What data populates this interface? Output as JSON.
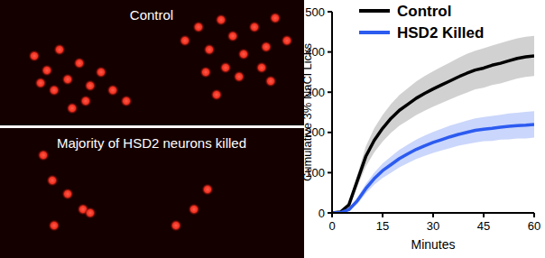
{
  "images": [
    {
      "label": "Control"
    },
    {
      "label": "Majority of HSD2 neurons killed"
    }
  ],
  "chart_data": {
    "type": "line",
    "x_label": "Minutes",
    "y_label": "Cumulative 3% NaCl Licks",
    "x": [
      0,
      2.5,
      5,
      7.5,
      10,
      12.5,
      15,
      17.5,
      20,
      22.5,
      25,
      27.5,
      30,
      32.5,
      35,
      37.5,
      40,
      42.5,
      45,
      47.5,
      50,
      52.5,
      55,
      57.5,
      60
    ],
    "series": [
      {
        "name": "Control",
        "color": "#000000",
        "values": [
          0,
          2,
          20,
          80,
          140,
          180,
          210,
          235,
          255,
          270,
          285,
          297,
          308,
          318,
          328,
          338,
          347,
          355,
          360,
          367,
          372,
          378,
          384,
          388,
          390
        ],
        "error": [
          0,
          1,
          5,
          15,
          25,
          30,
          33,
          36,
          38,
          40,
          42,
          43,
          44,
          45,
          46,
          47,
          48,
          48,
          49,
          49,
          50,
          50,
          50,
          50,
          50
        ]
      },
      {
        "name": "HSD2 Killed",
        "color": "#2c5bf0",
        "values": [
          0,
          1,
          8,
          30,
          60,
          85,
          105,
          120,
          135,
          147,
          158,
          167,
          175,
          182,
          189,
          195,
          200,
          205,
          208,
          210,
          213,
          215,
          217,
          218,
          220
        ],
        "error": [
          0,
          1,
          3,
          8,
          12,
          15,
          18,
          20,
          22,
          23,
          24,
          25,
          26,
          27,
          28,
          28,
          29,
          30,
          30,
          31,
          31,
          32,
          32,
          33,
          33
        ]
      }
    ],
    "xlim": [
      0,
      60
    ],
    "xticks": [
      0,
      15,
      30,
      45,
      60
    ],
    "ylim": [
      0,
      500
    ],
    "yticks": [
      0,
      100,
      200,
      300,
      400,
      500
    ],
    "grid": false,
    "legend": "top-left"
  }
}
